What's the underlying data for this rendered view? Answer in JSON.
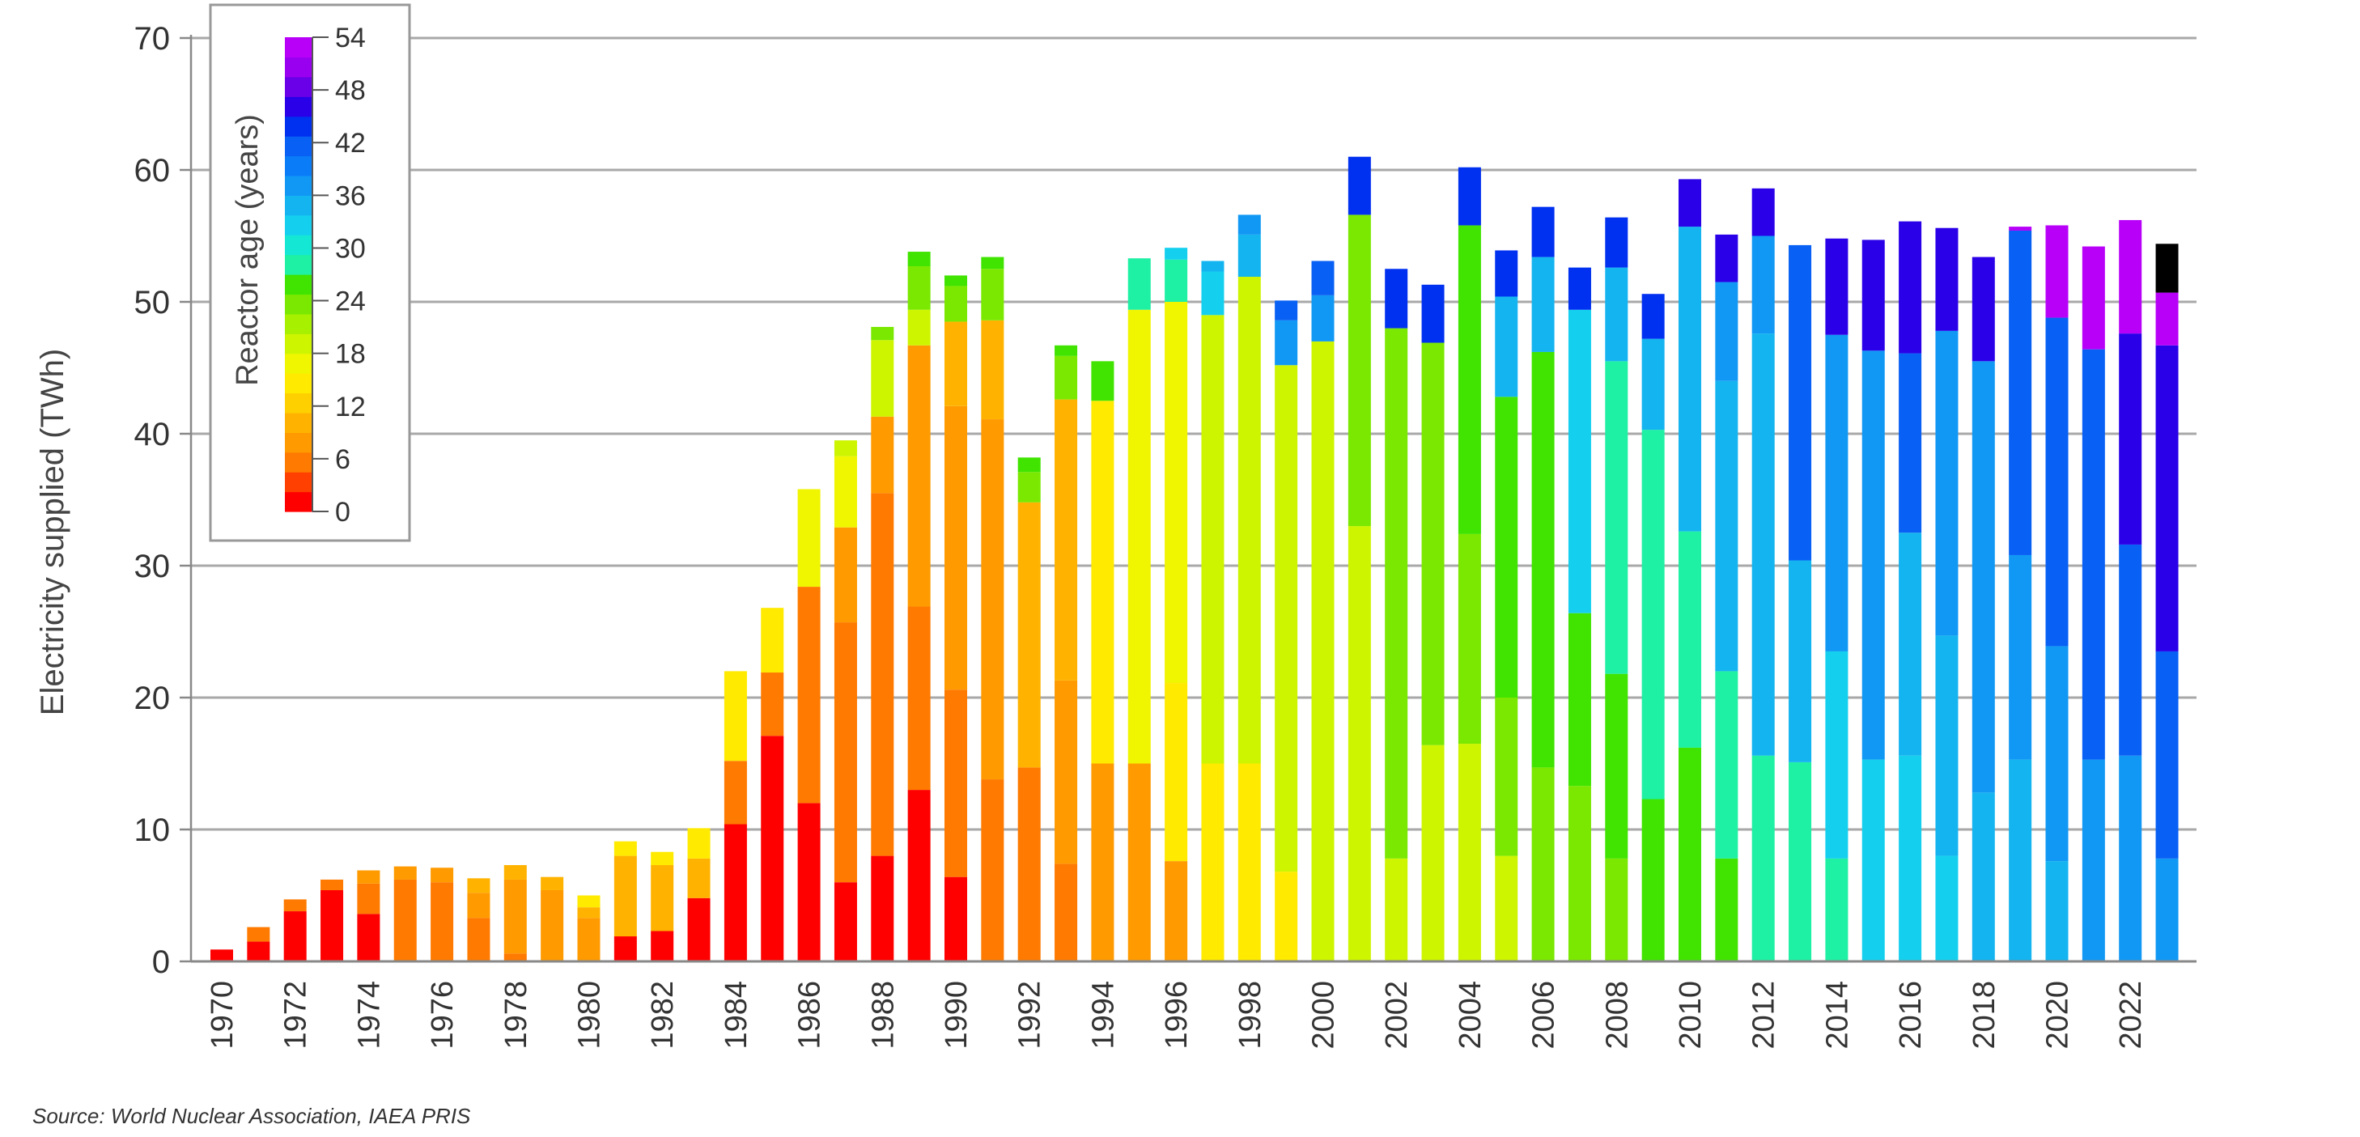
{
  "chart_data": {
    "type": "bar",
    "stacked": true,
    "ylabel": "Electricity supplied (TWh)",
    "ylim": [
      0,
      70
    ],
    "yticks": [
      0,
      10,
      20,
      30,
      40,
      50,
      60,
      70
    ],
    "grid": true,
    "x": [
      1970,
      1971,
      1972,
      1973,
      1974,
      1975,
      1976,
      1977,
      1978,
      1979,
      1980,
      1981,
      1982,
      1983,
      1984,
      1985,
      1986,
      1987,
      1988,
      1989,
      1990,
      1991,
      1992,
      1993,
      1994,
      1995,
      1996,
      1997,
      1998,
      1999,
      2000,
      2001,
      2002,
      2003,
      2004,
      2005,
      2006,
      2007,
      2008,
      2009,
      2010,
      2011,
      2012,
      2013,
      2014,
      2015,
      2016,
      2017,
      2018,
      2019,
      2020,
      2021,
      2022,
      2023
    ],
    "xtick_labels": [
      "1970",
      "1972",
      "1974",
      "1976",
      "1978",
      "1980",
      "1982",
      "1984",
      "1986",
      "1988",
      "1990",
      "1992",
      "1994",
      "1996",
      "1998",
      "2000",
      "2002",
      "2004",
      "2006",
      "2008",
      "2010",
      "2012",
      "2014",
      "2016",
      "2018",
      "2020",
      "2022"
    ],
    "bin_start_ages": [
      0,
      3,
      6,
      9,
      12,
      15,
      18,
      21,
      24,
      27,
      30,
      33,
      36,
      39,
      42,
      45,
      48,
      51
    ],
    "colorscale": [
      "#ff0000",
      "#ff4000",
      "#ff7a00",
      "#ff9a00",
      "#ffb300",
      "#ffd000",
      "#ffea00",
      "#f0f500",
      "#cdf500",
      "#a6f000",
      "#7ae800",
      "#40e400",
      "#1ef0a4",
      "#14e8d4",
      "#14d0ee",
      "#14b4f0",
      "#1098f4",
      "#0a7cf8",
      "#0860f4",
      "#0030f0",
      "#2a00e8",
      "#6a00e8",
      "#9a00f0",
      "#b800f8"
    ],
    "legend": {
      "title": "Reactor age (years)",
      "placement": "top-left",
      "tick_labels": [
        "0",
        "6",
        "12",
        "18",
        "24",
        "30",
        "36",
        "42",
        "48",
        "54"
      ]
    },
    "stacks": [
      [
        0.9
      ],
      [
        1.5,
        1.1
      ],
      [
        3.8,
        0.9
      ],
      [
        5.4,
        0.8
      ],
      [
        3.6,
        2.3,
        1.0
      ],
      [
        0,
        6.2,
        1.0
      ],
      [
        0,
        6.0,
        1.1
      ],
      [
        0,
        3.3,
        1.9,
        1.1
      ],
      [
        0,
        0.6,
        5.6,
        1.1
      ],
      [
        0,
        0,
        5.4,
        1.0
      ],
      [
        0,
        0,
        3.3,
        0.8,
        0.9
      ],
      [
        1.9,
        0,
        0,
        6.1,
        1.1
      ],
      [
        2.3,
        0,
        0,
        5.0,
        1.0
      ],
      [
        4.8,
        0,
        0,
        3.0,
        2.3
      ],
      [
        10.4,
        4.8,
        0,
        0,
        6.8
      ],
      [
        17.1,
        4.8,
        0,
        0,
        4.9
      ],
      [
        12.0,
        16.4,
        0,
        0,
        0,
        7.4
      ],
      [
        6.0,
        19.7,
        7.2,
        0,
        0,
        5.4,
        1.2
      ],
      [
        8.0,
        27.5,
        5.8,
        0,
        0,
        0,
        5.8,
        1.0
      ],
      [
        13.0,
        13.9,
        19.8,
        0,
        0,
        0,
        2.7,
        3.3,
        1.1
      ],
      [
        6.4,
        14.2,
        21.5,
        6.4,
        0,
        0,
        0,
        2.7,
        0.8
      ],
      [
        0,
        13.8,
        27.3,
        7.5,
        0,
        0,
        0,
        3.9,
        0.9
      ],
      [
        0,
        14.7,
        0,
        20.1,
        0,
        0,
        0,
        2.3,
        1.1
      ],
      [
        0,
        7.4,
        13.9,
        21.3,
        0,
        0,
        0,
        3.3,
        0.8
      ],
      [
        0,
        0,
        15.0,
        0,
        27.5,
        0,
        0,
        0,
        3.0
      ],
      [
        0,
        0,
        15.0,
        0,
        0,
        34.4,
        0,
        0,
        0,
        3.9
      ],
      [
        0,
        0,
        7.6,
        0,
        13.5,
        28.9,
        0,
        0,
        0,
        3.2,
        0.9
      ],
      [
        0,
        0,
        0,
        0,
        15.0,
        0,
        34.0,
        0,
        0,
        0,
        3.3,
        0.8
      ],
      [
        0,
        0,
        0,
        0,
        15.0,
        0,
        36.9,
        0,
        0,
        0,
        0,
        3.2,
        1.5
      ],
      [
        0,
        0,
        0,
        0,
        6.8,
        0,
        38.4,
        0,
        0,
        0,
        0,
        0,
        3.4,
        1.5
      ],
      [
        0,
        0,
        0,
        0,
        0,
        0,
        47.0,
        0,
        0,
        0,
        0,
        0,
        3.5,
        2.6
      ],
      [
        0,
        0,
        0,
        0,
        0,
        0,
        33.0,
        23.6,
        0,
        0,
        0,
        0,
        0,
        0,
        4.4
      ],
      [
        0,
        0,
        0,
        0,
        0,
        0,
        7.8,
        40.2,
        0,
        0,
        0,
        0,
        0,
        0,
        4.5
      ],
      [
        0,
        0,
        0,
        0,
        0,
        0,
        16.4,
        30.5,
        0,
        0,
        0,
        0,
        0,
        0,
        4.4
      ],
      [
        0,
        0,
        0,
        0,
        0,
        0,
        16.5,
        15.9,
        23.4,
        0,
        0,
        0,
        0,
        0,
        4.4
      ],
      [
        0,
        0,
        0,
        0,
        0,
        0,
        8.0,
        12.0,
        22.8,
        0,
        0,
        7.6,
        0,
        0,
        3.5
      ],
      [
        0,
        0,
        0,
        0,
        0,
        0,
        0,
        14.7,
        31.5,
        0,
        0,
        7.2,
        0,
        0,
        3.8
      ],
      [
        0,
        0,
        0,
        0,
        0,
        0,
        0,
        13.3,
        13.1,
        0,
        23.0,
        0,
        0,
        0,
        3.2
      ],
      [
        0,
        0,
        0,
        0,
        0,
        0,
        0,
        7.8,
        14.0,
        23.7,
        0,
        7.1,
        0,
        0,
        3.8
      ],
      [
        0,
        0,
        0,
        0,
        0,
        0,
        0,
        0,
        12.3,
        28.0,
        0,
        6.9,
        0,
        0,
        3.4
      ],
      [
        0,
        0,
        0,
        0,
        0,
        0,
        0,
        0,
        16.2,
        16.4,
        0,
        23.1,
        0,
        0,
        0,
        3.6
      ],
      [
        0,
        0,
        0,
        0,
        0,
        0,
        0,
        0,
        7.8,
        14.2,
        0,
        22.0,
        7.5,
        0,
        0,
        3.6
      ],
      [
        0,
        0,
        0,
        0,
        0,
        0,
        0,
        0,
        0,
        15.6,
        0,
        32.0,
        7.4,
        0,
        0,
        3.6
      ],
      [
        0,
        0,
        0,
        0,
        0,
        0,
        0,
        0,
        0,
        15.1,
        0,
        15.3,
        0,
        23.9,
        0
      ],
      [
        0,
        0,
        0,
        0,
        0,
        0,
        0,
        0,
        0,
        7.8,
        15.7,
        0,
        24.0,
        0,
        0,
        7.3
      ],
      [
        0,
        0,
        0,
        0,
        0,
        0,
        0,
        0,
        0,
        0,
        15.3,
        0,
        31.0,
        0,
        0,
        8.4
      ],
      [
        0,
        0,
        0,
        0,
        0,
        0,
        0,
        0,
        0,
        0,
        15.6,
        16.9,
        0,
        13.6,
        0,
        10.0
      ],
      [
        0,
        0,
        0,
        0,
        0,
        0,
        0,
        0,
        0,
        0,
        8.0,
        16.7,
        23.1,
        0,
        0,
        7.8
      ],
      [
        0,
        0,
        0,
        0,
        0,
        0,
        0,
        0,
        0,
        0,
        0,
        12.8,
        32.7,
        0,
        0,
        7.9
      ],
      [
        0,
        0,
        0,
        0,
        0,
        0,
        0,
        0,
        0,
        0,
        0,
        15.3,
        15.5,
        24.6,
        0,
        0,
        0,
        0.3
      ],
      [
        0,
        0,
        0,
        0,
        0,
        0,
        0,
        0,
        0,
        0,
        0,
        7.6,
        16.3,
        24.9,
        0,
        0,
        0,
        7.0
      ],
      [
        0,
        0,
        0,
        0,
        0,
        0,
        0,
        0,
        0,
        0,
        0,
        0,
        15.3,
        31.1,
        0,
        0,
        0,
        7.8
      ],
      [
        0,
        0,
        0,
        0,
        0,
        0,
        0,
        0,
        0,
        0,
        0,
        0,
        15.6,
        16.0,
        0,
        16.0,
        0,
        8.6
      ],
      [
        0,
        0,
        0,
        0,
        0,
        0,
        0,
        0,
        0,
        0,
        0,
        0,
        7.8,
        15.7,
        0,
        23.2,
        0,
        4.0,
        3.7
      ]
    ]
  },
  "source": "Source: World Nuclear Association, IAEA PRIS"
}
